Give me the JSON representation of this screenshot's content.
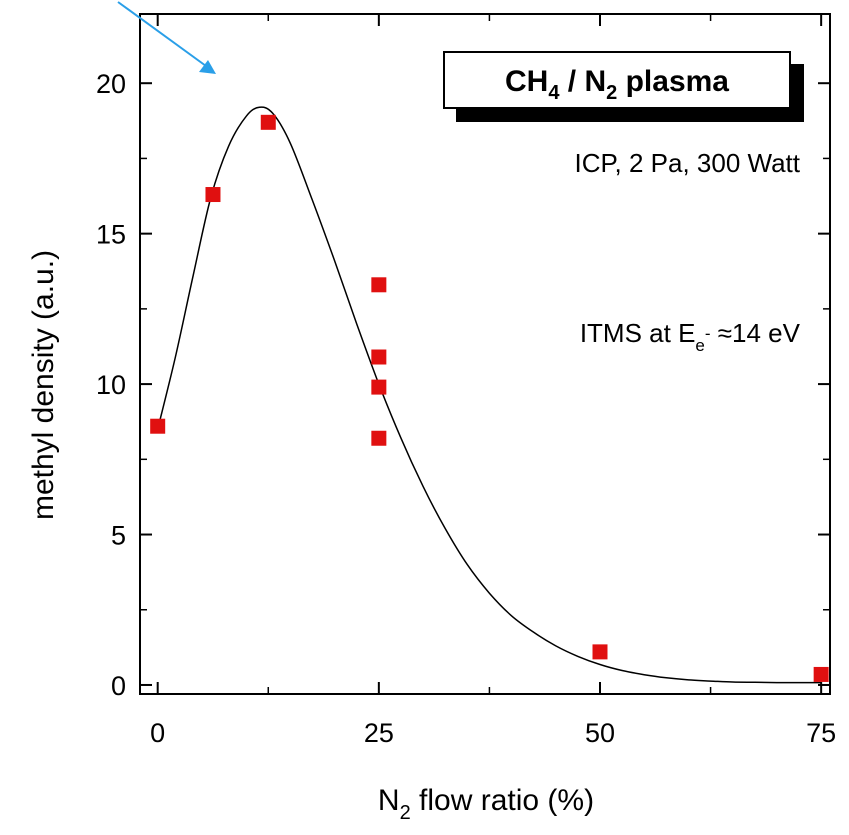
{
  "chart_data": {
    "type": "scatter",
    "title": "",
    "xlabel_main": "N",
    "xlabel_sub": "2",
    "xlabel_rest": " flow ratio (%)",
    "ylabel": "methyl density (a.u.)",
    "xlim": [
      -2,
      76
    ],
    "ylim": [
      -0.3,
      22.3
    ],
    "xticks": [
      0,
      25,
      50,
      75
    ],
    "xtick_labels": [
      "0",
      "25",
      "50",
      "75"
    ],
    "yticks": [
      0,
      5,
      10,
      15,
      20
    ],
    "ytick_labels": [
      "0",
      "5",
      "10",
      "15",
      "20"
    ],
    "grid": false,
    "marker_color": "#e01010",
    "curve_color": "#000000",
    "arrow_color": "#2a9fe8",
    "series": [
      {
        "marker": "square",
        "x": [
          0,
          6.25,
          12.5,
          25,
          25,
          25,
          25,
          50,
          75
        ],
        "y": [
          8.6,
          16.3,
          18.7,
          13.3,
          10.9,
          9.9,
          8.2,
          1.1,
          0.35
        ]
      }
    ],
    "fit_curve": {
      "x": [
        0,
        2,
        4,
        6,
        8,
        10,
        11.5,
        13,
        15,
        17.5,
        20,
        22.5,
        25,
        27.5,
        30,
        32.5,
        35,
        37.5,
        40,
        42.5,
        45,
        47.5,
        50,
        52.5,
        55,
        57.5,
        60,
        62.5,
        65,
        67.5,
        70,
        72.5,
        75
      ],
      "y": [
        8.5,
        10.9,
        13.6,
        16.2,
        17.9,
        18.9,
        19.2,
        19.0,
        18.0,
        16.1,
        14.1,
        12.0,
        10.0,
        8.2,
        6.6,
        5.2,
        4.0,
        3.05,
        2.3,
        1.75,
        1.3,
        0.95,
        0.68,
        0.48,
        0.34,
        0.24,
        0.17,
        0.13,
        0.1,
        0.09,
        0.08,
        0.08,
        0.08
      ]
    },
    "annotations": {
      "box_title_main1": "CH",
      "box_title_sub1": "4",
      "box_title_main2": " / N",
      "box_title_sub2": "2",
      "box_title_main3": " plasma",
      "condition": "ICP, 2 Pa, 300 Watt",
      "itms_main": "ITMS at E",
      "itms_sub": "e",
      "itms_sup": "-",
      "itms_rest": " ≈14 eV"
    }
  }
}
